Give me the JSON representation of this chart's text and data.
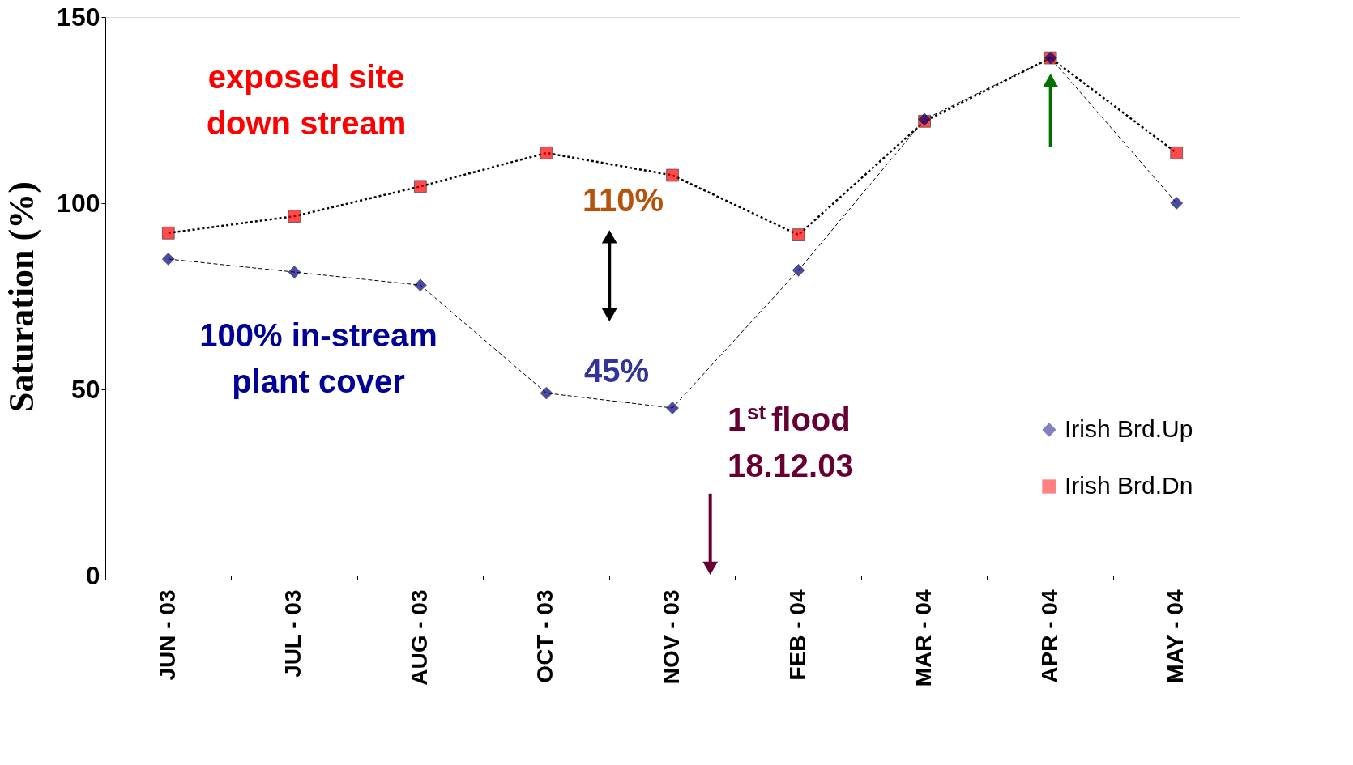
{
  "chart_data": {
    "type": "line",
    "ylabel": "Saturation (%)",
    "categories": [
      "JUN - 03",
      "JUL - 03",
      "AUG - 03",
      "OCT - 03",
      "NOV - 03",
      "FEB - 04",
      "MAR - 04",
      "APR - 04",
      "MAY - 04"
    ],
    "series": [
      {
        "name": "Irish Brd.Up",
        "color": "#000080",
        "marker": "diamond",
        "line_style": "dashed",
        "values": [
          85,
          81.5,
          78,
          49,
          45,
          82,
          122.5,
          139,
          100
        ]
      },
      {
        "name": "Irish Brd.Dn",
        "color": "#ff0000",
        "marker": "square",
        "line_style": "dotted",
        "values": [
          92,
          96.5,
          104.5,
          113.5,
          107.5,
          91.5,
          122,
          139,
          113.5
        ]
      }
    ],
    "ylim": [
      0,
      150
    ],
    "yticks": [
      0,
      50,
      100,
      150
    ],
    "grid": false,
    "legend": "bottom right",
    "annotations": [
      "exposed site\ndown stream",
      "110%",
      "100% in-stream\nplant cover",
      "45%",
      "1$^{st}$ flood\n18.12.03"
    ]
  }
}
